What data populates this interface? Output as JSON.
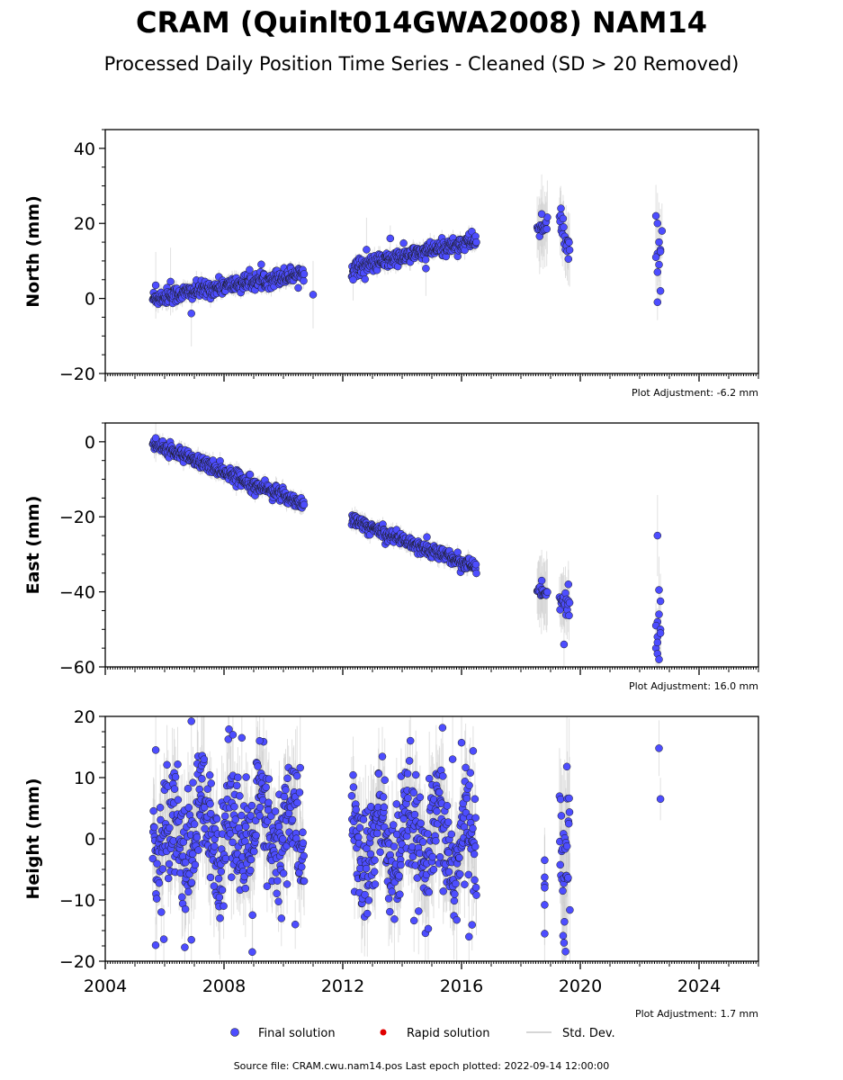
{
  "title": "CRAM (Quinlt014GWA2008) NAM14",
  "subtitle": "Processed Daily Position Time Series - Cleaned (SD > 20 Removed)",
  "legend": {
    "final": "Final solution",
    "rapid": "Rapid solution",
    "std": "Std. Dev."
  },
  "footer": "Source file: CRAM.cwu.nam14.pos  Last epoch plotted: 2022-09-14 12:00:00",
  "colors": {
    "final": "#4d4dff",
    "rapid": "#e00000",
    "std": "#c8c8c8"
  },
  "chart_data": [
    {
      "type": "scatter",
      "ylabel": "North (mm)",
      "adjustment": "Plot Adjustment: -6.2 mm",
      "xlim": [
        2004,
        2026
      ],
      "ylim": [
        -20,
        45
      ],
      "yticks": [
        -20,
        0,
        20,
        40
      ],
      "xticks": [
        2004,
        2008,
        2012,
        2016,
        2020,
        2024
      ],
      "show_x_tick_labels": false,
      "segments": [
        {
          "x": [
            2005.6,
            2010.7
          ],
          "y": [
            0.0,
            6.8
          ],
          "noise": 1.1,
          "sd": 1.8,
          "step": 0.014
        },
        {
          "x": [
            2012.3,
            2016.5
          ],
          "y": [
            8.0,
            15.5
          ],
          "noise": 1.1,
          "sd": 1.8,
          "step": 0.014
        },
        {
          "x": [
            2018.55,
            2018.9
          ],
          "y": [
            18.5,
            19.0
          ],
          "noise": 1.0,
          "sd": 8.0,
          "step": 0.02
        },
        {
          "x": [
            2019.3,
            2019.65
          ],
          "y": [
            21.0,
            12.5
          ],
          "noise": 2.0,
          "sd": 7.0,
          "step": 0.02
        }
      ],
      "points": [
        [
          2005.7,
          3.5
        ],
        [
          2006.2,
          4.5
        ],
        [
          2006.9,
          -4.0
        ],
        [
          2011.0,
          1.0
        ],
        [
          2012.35,
          5.0
        ],
        [
          2012.8,
          13.0
        ],
        [
          2013.6,
          16.0
        ],
        [
          2014.8,
          8.0
        ],
        [
          2018.7,
          22.5
        ],
        [
          2019.35,
          24.0
        ],
        [
          2019.6,
          10.5
        ],
        [
          2022.55,
          22.0
        ],
        [
          2022.6,
          20.0
        ],
        [
          2022.65,
          15.0
        ],
        [
          2022.6,
          12.0
        ],
        [
          2022.55,
          11.0
        ],
        [
          2022.7,
          13.0
        ],
        [
          2022.65,
          9.0
        ],
        [
          2022.6,
          7.0
        ],
        [
          2022.7,
          2.0
        ],
        [
          2022.6,
          -1.0
        ],
        [
          2022.75,
          18.0
        ],
        [
          2022.7,
          12.5
        ]
      ]
    },
    {
      "type": "scatter",
      "ylabel": "East (mm)",
      "adjustment": "Plot Adjustment: 16.0 mm",
      "xlim": [
        2004,
        2026
      ],
      "ylim": [
        -60,
        5
      ],
      "yticks": [
        -60,
        -40,
        -20,
        0
      ],
      "xticks": [
        2004,
        2008,
        2012,
        2016,
        2020,
        2024
      ],
      "show_x_tick_labels": false,
      "segments": [
        {
          "x": [
            2005.6,
            2010.7
          ],
          "y": [
            -0.5,
            -16.5
          ],
          "noise": 0.9,
          "sd": 1.8,
          "step": 0.014
        },
        {
          "x": [
            2012.3,
            2016.5
          ],
          "y": [
            -21.0,
            -33.5
          ],
          "noise": 0.9,
          "sd": 1.8,
          "step": 0.014
        },
        {
          "x": [
            2018.55,
            2018.9
          ],
          "y": [
            -40.0,
            -40.5
          ],
          "noise": 1.0,
          "sd": 8.0,
          "step": 0.02
        },
        {
          "x": [
            2019.3,
            2019.65
          ],
          "y": [
            -42.5,
            -45.0
          ],
          "noise": 1.8,
          "sd": 6.0,
          "step": 0.02
        }
      ],
      "points": [
        [
          2005.7,
          1.0
        ],
        [
          2018.7,
          -37.0
        ],
        [
          2019.45,
          -54.0
        ],
        [
          2019.6,
          -38.0
        ],
        [
          2022.6,
          -25.0
        ],
        [
          2022.65,
          -39.5
        ],
        [
          2022.7,
          -42.5
        ],
        [
          2022.65,
          -46.0
        ],
        [
          2022.6,
          -48.0
        ],
        [
          2022.55,
          -49.0
        ],
        [
          2022.7,
          -50.0
        ],
        [
          2022.6,
          -52.0
        ],
        [
          2022.55,
          -55.0
        ],
        [
          2022.6,
          -56.5
        ],
        [
          2022.65,
          -58.0
        ],
        [
          2022.7,
          -51.0
        ],
        [
          2022.6,
          -53.5
        ]
      ]
    },
    {
      "type": "scatter",
      "ylabel": "Height (mm)",
      "adjustment": "Plot Adjustment: 1.7 mm",
      "xlim": [
        2004,
        2026
      ],
      "ylim": [
        -20,
        20
      ],
      "yticks": [
        -20,
        -10,
        0,
        10,
        20
      ],
      "xticks": [
        2004,
        2008,
        2012,
        2016,
        2020,
        2024
      ],
      "show_x_tick_labels": true,
      "segments": [
        {
          "x": [
            2005.6,
            2010.7
          ],
          "y": [
            1.0,
            1.0
          ],
          "noise": 5.0,
          "seasonal": 4.5,
          "sd": 6.0,
          "step": 0.012
        },
        {
          "x": [
            2012.3,
            2016.5
          ],
          "y": [
            -1.0,
            -1.0
          ],
          "noise": 5.0,
          "seasonal": 4.5,
          "sd": 6.0,
          "step": 0.012
        },
        {
          "x": [
            2019.3,
            2019.65
          ],
          "y": [
            -4.0,
            -4.0
          ],
          "noise": 6.0,
          "sd": 10.0,
          "step": 0.012
        }
      ],
      "points": [
        [
          2005.7,
          14.5
        ],
        [
          2006.9,
          19.2
        ],
        [
          2008.3,
          17.0
        ],
        [
          2008.6,
          16.5
        ],
        [
          2009.2,
          16.0
        ],
        [
          2008.95,
          -18.5
        ],
        [
          2006.9,
          -16.5
        ],
        [
          2006.7,
          -11.5
        ],
        [
          2010.4,
          -14.0
        ],
        [
          2016.0,
          15.7
        ],
        [
          2015.7,
          13.0
        ],
        [
          2016.25,
          -16.0
        ],
        [
          2018.8,
          -3.5
        ],
        [
          2018.8,
          -6.3
        ],
        [
          2018.8,
          -7.5
        ],
        [
          2018.8,
          -8.0
        ],
        [
          2018.8,
          -10.8
        ],
        [
          2018.8,
          -15.5
        ],
        [
          2019.55,
          11.8
        ],
        [
          2019.45,
          -17.0
        ],
        [
          2022.65,
          14.8
        ],
        [
          2022.7,
          6.5
        ]
      ]
    }
  ]
}
